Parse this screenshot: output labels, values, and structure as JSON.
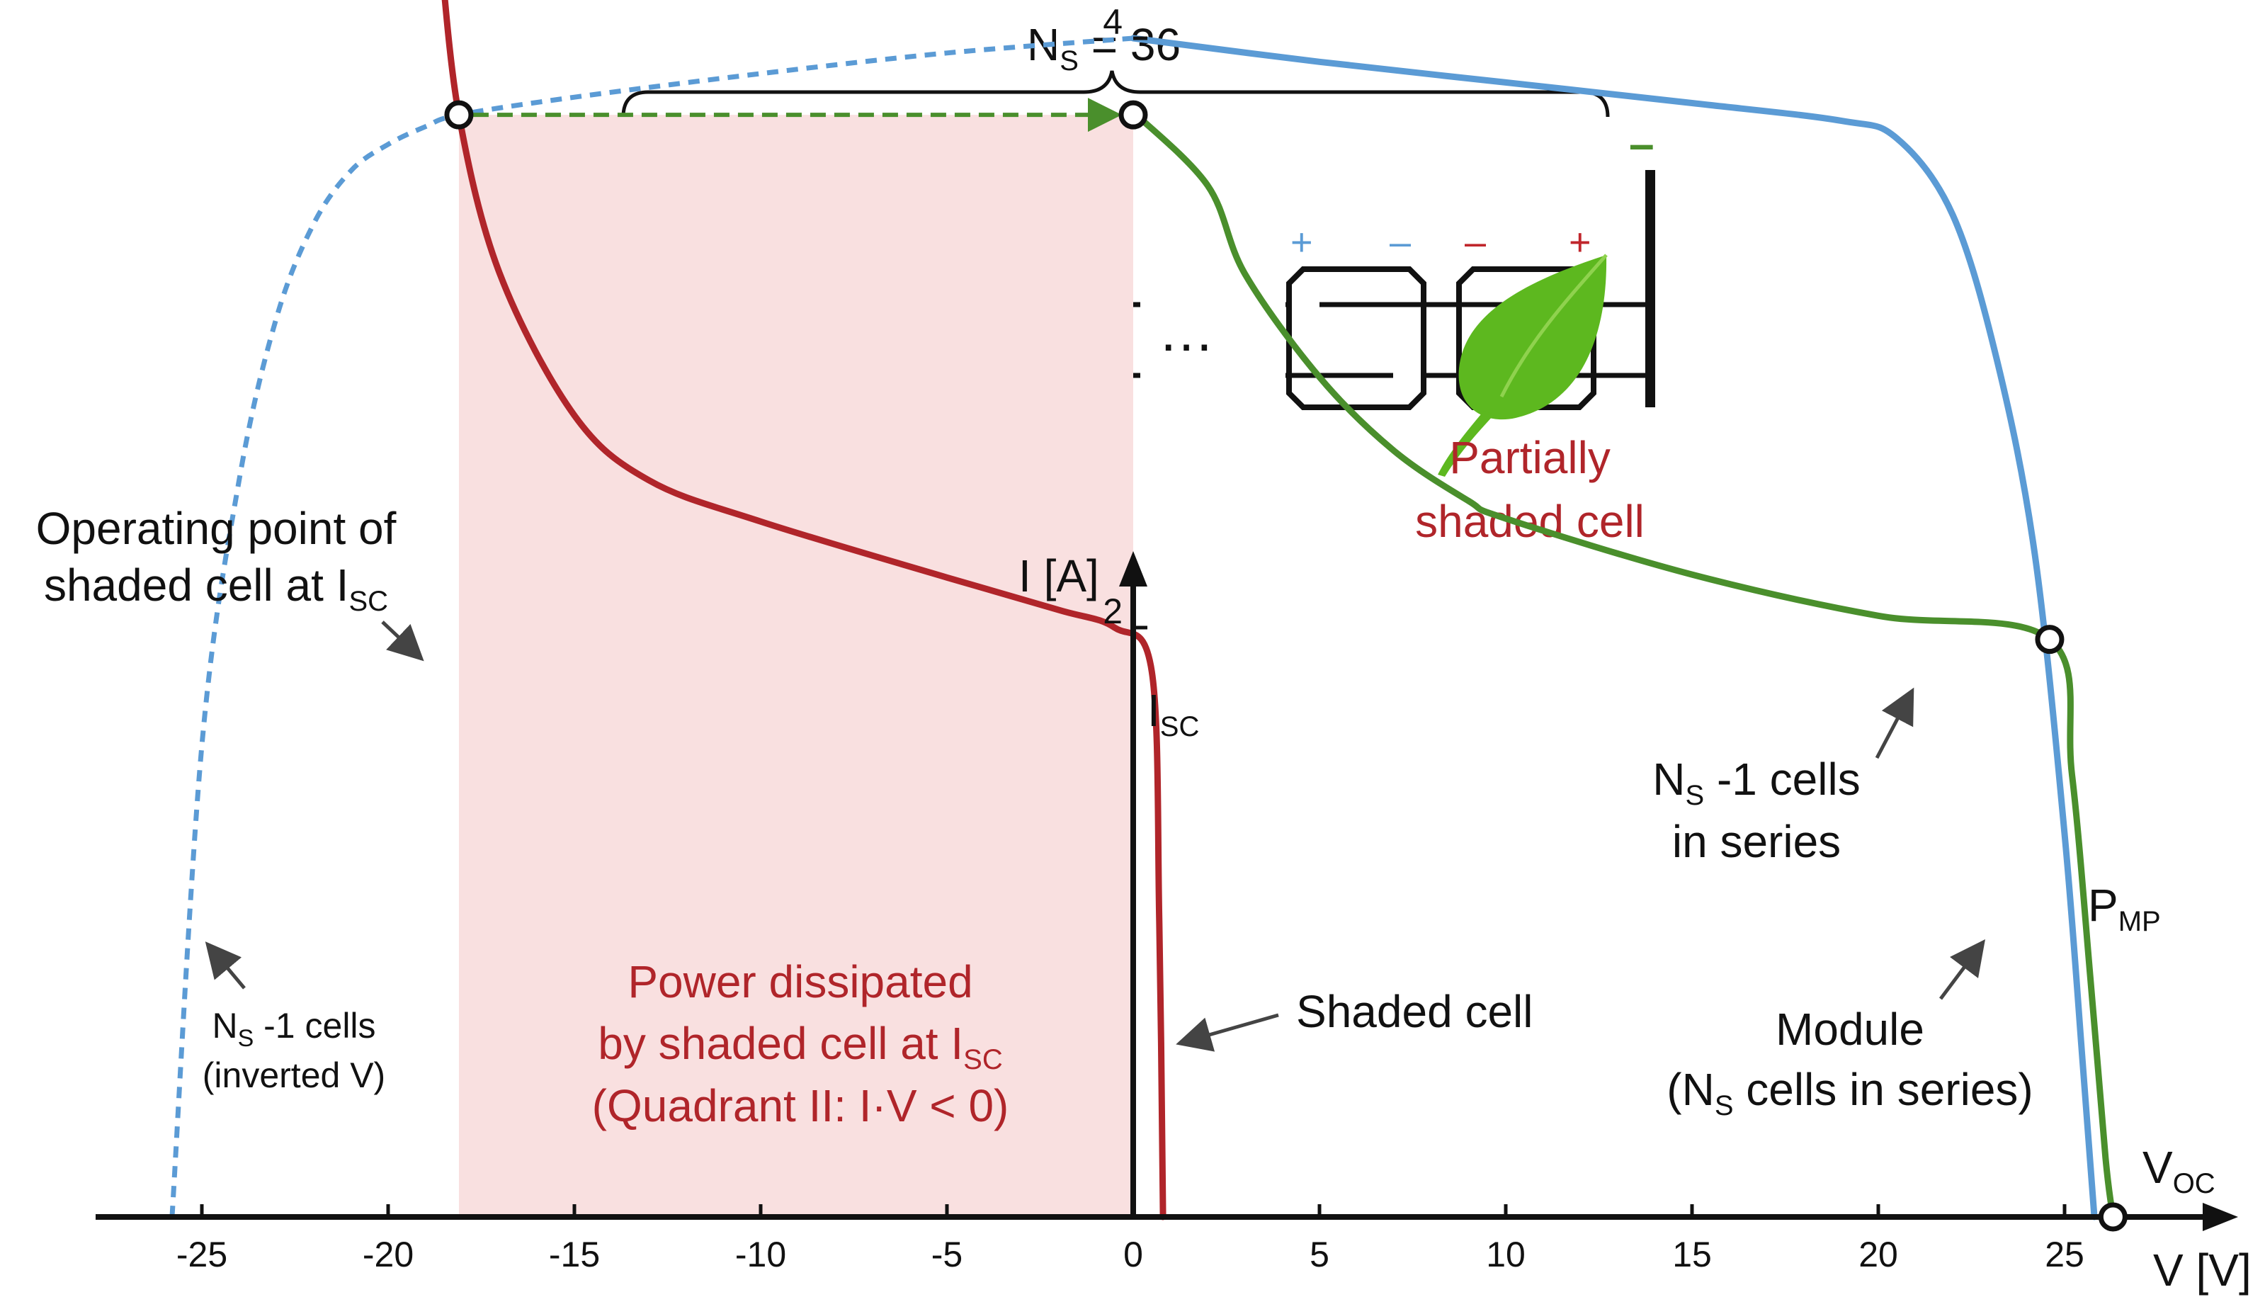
{
  "string_diagram": {
    "ns_label": "N",
    "ns_sub": "S",
    "ns_value": " = 36",
    "plus_label": "+",
    "minus_label": "–",
    "v_label": "V",
    "i_label": "I",
    "cell_plus": "+",
    "cell_minus": "–",
    "ellipsis": "…",
    "shaded_title_1": "Partially",
    "shaded_title_2": "shaded cell"
  },
  "annotations": {
    "operating_point_1": "Operating point of",
    "operating_point_2": "shaded cell at I",
    "operating_point_sub": "SC",
    "isc": "I",
    "isc_sub": "SC",
    "ns1_series_1_pre": "N",
    "ns1_series_1_sub": "S",
    "ns1_series_1_post": " -1 cells",
    "ns1_series_2": "in series",
    "pmp": "P",
    "pmp_sub": "MP",
    "voc": "V",
    "voc_sub": "OC",
    "module_1": "Module",
    "module_2_pre": "(N",
    "module_2_sub": "S",
    "module_2_post": " cells in series)",
    "shaded_cell": "Shaded cell",
    "inv_1_pre": "N",
    "inv_1_sub": "S",
    "inv_1_post": " -1 cells",
    "inv_2": "(inverted V)",
    "power_1": "Power dissipated",
    "power_2": "by shaded cell at I",
    "power_2_sub": "SC",
    "power_3": "(Quadrant II: I·V < 0)"
  },
  "chart_data": {
    "type": "line",
    "xlabel": "V [V]",
    "ylabel": "I [A]",
    "xlim": [
      -27,
      29
    ],
    "ylim": [
      0,
      5.3
    ],
    "x_ticks": [
      -25,
      -20,
      -15,
      -10,
      -5,
      0,
      5,
      10,
      15,
      20,
      25
    ],
    "y_ticks": [
      2,
      4
    ],
    "colors": {
      "module": "#4a8f2c",
      "ns_minus_1": "#5b9bd5",
      "shaded_cell": "#b0252a",
      "power_area": "#f9e0e0",
      "dashed_arrow": "#4a8f2c"
    },
    "series": [
      {
        "name": "Module",
        "style": "solid",
        "x": [
          0,
          2,
          3,
          5,
          7,
          9,
          10,
          15,
          20,
          24.6,
          25.2,
          25.7,
          26.1,
          26.3
        ],
        "y": [
          3.75,
          3.5,
          3.2,
          2.85,
          2.6,
          2.43,
          2.37,
          2.18,
          2.04,
          1.96,
          1.5,
          0.8,
          0.2,
          0
        ]
      },
      {
        "name": "N_S -1 cells in series",
        "style": "solid",
        "x": [
          0,
          5,
          10,
          15,
          19,
          20.5,
          22,
          23.2,
          24.2,
          25,
          25.5,
          25.8
        ],
        "y": [
          4.0,
          3.92,
          3.85,
          3.78,
          3.72,
          3.66,
          3.4,
          2.9,
          2.25,
          1.3,
          0.5,
          0
        ]
      },
      {
        "name": "N_S -1 cells (inverted V)",
        "style": "dashed",
        "x": [
          -25.8,
          -25,
          -24,
          -23,
          -22,
          -21,
          -20,
          -19,
          -18.1,
          -15,
          -10,
          -5,
          0
        ],
        "y": [
          0,
          1.6,
          2.5,
          3.05,
          3.37,
          3.55,
          3.64,
          3.7,
          3.74,
          3.8,
          3.88,
          3.95,
          4.0
        ]
      },
      {
        "name": "Shaded cell",
        "style": "solid",
        "x": [
          -18.6,
          -18.1,
          -17,
          -15,
          -13,
          -10,
          -5,
          -2,
          -0.5,
          0.5,
          0.7,
          0.8
        ],
        "y": [
          4.3,
          3.74,
          3.2,
          2.72,
          2.5,
          2.36,
          2.17,
          2.06,
          2.0,
          1.85,
          1.0,
          0
        ]
      }
    ],
    "operating_arrow": {
      "from": [
        -18.1,
        3.74
      ],
      "to": [
        0,
        3.74
      ]
    },
    "power_area": {
      "x": [
        -18.1,
        0
      ],
      "y": [
        0,
        3.74
      ]
    },
    "points": [
      {
        "x": -18.1,
        "y": 3.74
      },
      {
        "x": 0,
        "y": 3.74
      },
      {
        "x": 24.6,
        "y": 1.96
      },
      {
        "x": 26.3,
        "y": 0
      }
    ]
  }
}
